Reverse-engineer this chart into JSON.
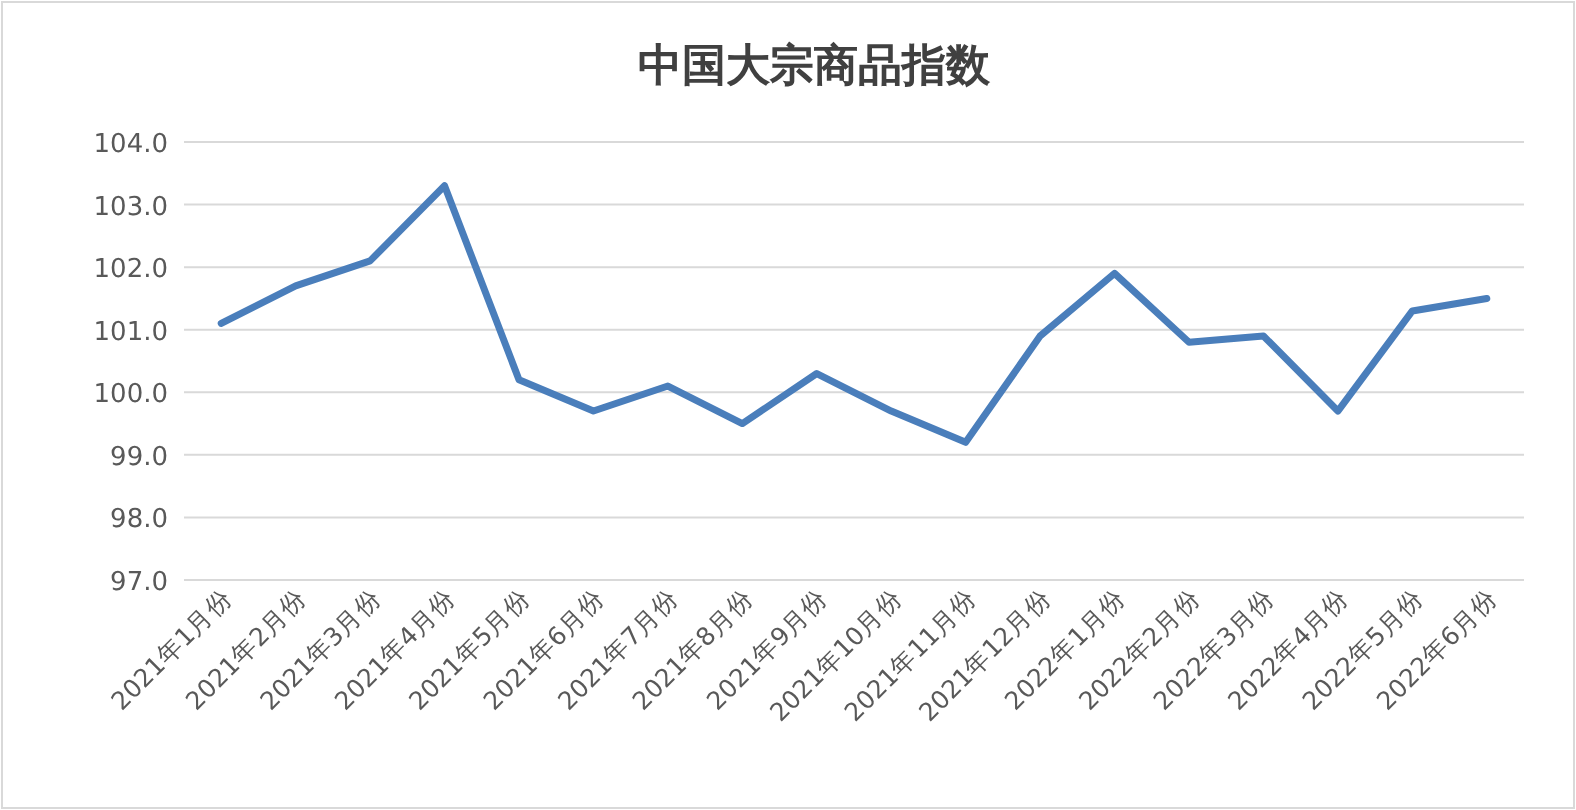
{
  "chart_data": {
    "type": "line",
    "title": "中国大宗商品指数",
    "categories": [
      "2021年1月份",
      "2021年2月份",
      "2021年3月份",
      "2021年4月份",
      "2021年5月份",
      "2021年6月份",
      "2021年7月份",
      "2021年8月份",
      "2021年9月份",
      "2021年10月份",
      "2021年11月份",
      "2021年12月份",
      "2022年1月份",
      "2022年2月份",
      "2022年3月份",
      "2022年4月份",
      "2022年5月份",
      "2022年6月份"
    ],
    "series": [
      {
        "color": "#4a7ebb",
        "values": [
          101.1,
          101.7,
          102.1,
          103.3,
          100.2,
          99.7,
          100.1,
          99.5,
          100.3,
          99.7,
          99.2,
          100.9,
          101.9,
          100.8,
          100.9,
          99.7,
          101.3,
          101.5
        ]
      }
    ],
    "ylim": [
      97,
      104
    ],
    "yticks": [
      {
        "value": 97,
        "label": "97.0"
      },
      {
        "value": 98,
        "label": "98.0"
      },
      {
        "value": 99,
        "label": "99.0"
      },
      {
        "value": 100,
        "label": "100.0"
      },
      {
        "value": 101,
        "label": "101.0"
      },
      {
        "value": 102,
        "label": "102.0"
      },
      {
        "value": 103,
        "label": "103.0"
      },
      {
        "value": 104,
        "label": "104.0"
      }
    ],
    "grid": "y",
    "marker": "none",
    "line_style": "solid"
  }
}
